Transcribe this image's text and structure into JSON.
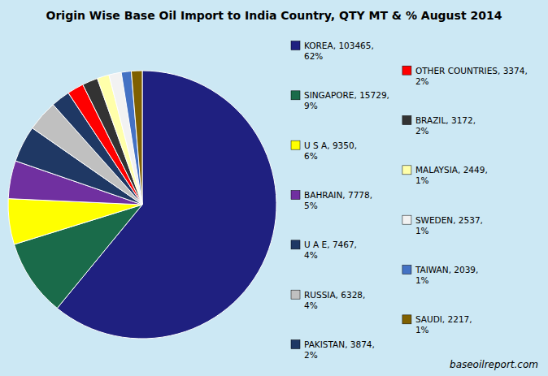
{
  "chart_data": {
    "type": "pie",
    "title": "Origin Wise Base Oil Import to India Country, QTY MT & % August 2014",
    "annotations": [
      "baseoilreport.com"
    ],
    "categories": [
      "KOREA",
      "SINGAPORE",
      "U S A",
      "BAHRAIN",
      "U A E",
      "RUSSIA",
      "PAKISTAN",
      "OTHER COUNTRIES",
      "BRAZIL",
      "MALAYSIA",
      "SWEDEN",
      "TAIWAN",
      "SAUDI"
    ],
    "values": [
      103465,
      15729,
      9350,
      7778,
      7467,
      6328,
      3874,
      3374,
      3172,
      2449,
      2537,
      2039,
      2217
    ],
    "percentages": [
      {
        "value": 62,
        "label": "62%"
      },
      {
        "value": 9,
        "label": "9%"
      },
      {
        "value": 6,
        "label": "6%"
      },
      {
        "value": 5,
        "label": "5%"
      },
      {
        "value": 4,
        "label": "4%"
      },
      {
        "value": 4,
        "label": "4%"
      },
      {
        "value": 2,
        "label": "2%"
      },
      {
        "value": 2,
        "label": "2%"
      },
      {
        "value": 2,
        "label": "2%"
      },
      {
        "value": 1,
        "label": "1%"
      },
      {
        "value": 1,
        "label": "1%"
      },
      {
        "value": 1,
        "label": "1%"
      },
      {
        "value": 1,
        "label": "1%"
      }
    ],
    "colors": [
      "#1f2080",
      "#1a6b4a",
      "#ffff00",
      "#7030a0",
      "#1f3864",
      "#c0c0c0",
      "#1f3864",
      "#ff0000",
      "#333333",
      "#ffffaa",
      "#f2f2f2",
      "#4472c4",
      "#7f6000"
    ]
  }
}
